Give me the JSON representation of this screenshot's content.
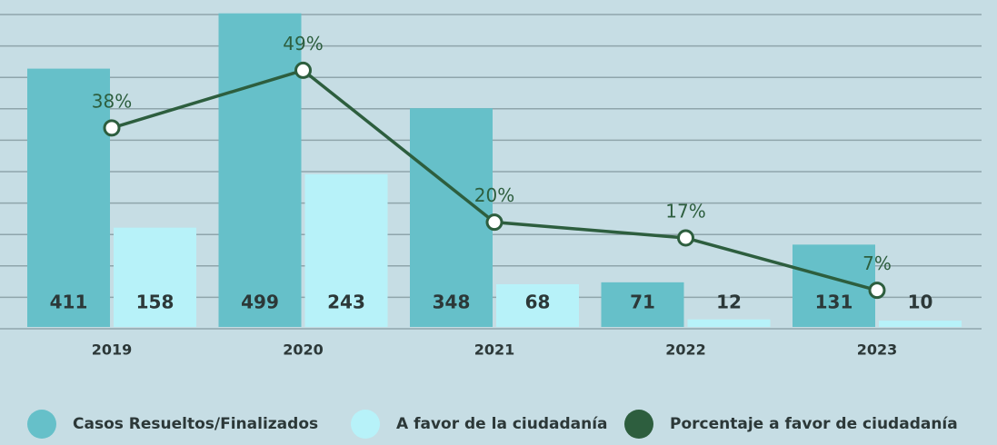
{
  "chart_data": {
    "type": "bar",
    "categories": [
      "2019",
      "2020",
      "2021",
      "2022",
      "2023"
    ],
    "series": [
      {
        "name": "Casos Resueltos/Finalizados",
        "color": "#66c0c9",
        "values": [
          411,
          499,
          348,
          71,
          131
        ]
      },
      {
        "name": "A favor de la ciudadanía",
        "color": "#b7f2f9",
        "values": [
          158,
          243,
          68,
          12,
          10
        ]
      },
      {
        "name": "Porcentaje a favor de ciudadanía",
        "color": "#2d5e3e",
        "type": "line",
        "axis": "y2",
        "values": [
          38,
          49,
          20,
          17,
          7
        ],
        "value_labels": [
          "38%",
          "49%",
          "20%",
          "17%",
          "7%"
        ]
      }
    ],
    "ylim": [
      0,
      500
    ],
    "yticks": [
      0,
      50,
      100,
      150,
      200,
      250,
      300,
      350,
      400,
      450,
      500
    ],
    "y2lim": [
      0,
      60
    ],
    "grid": true,
    "legend": "bottom"
  }
}
